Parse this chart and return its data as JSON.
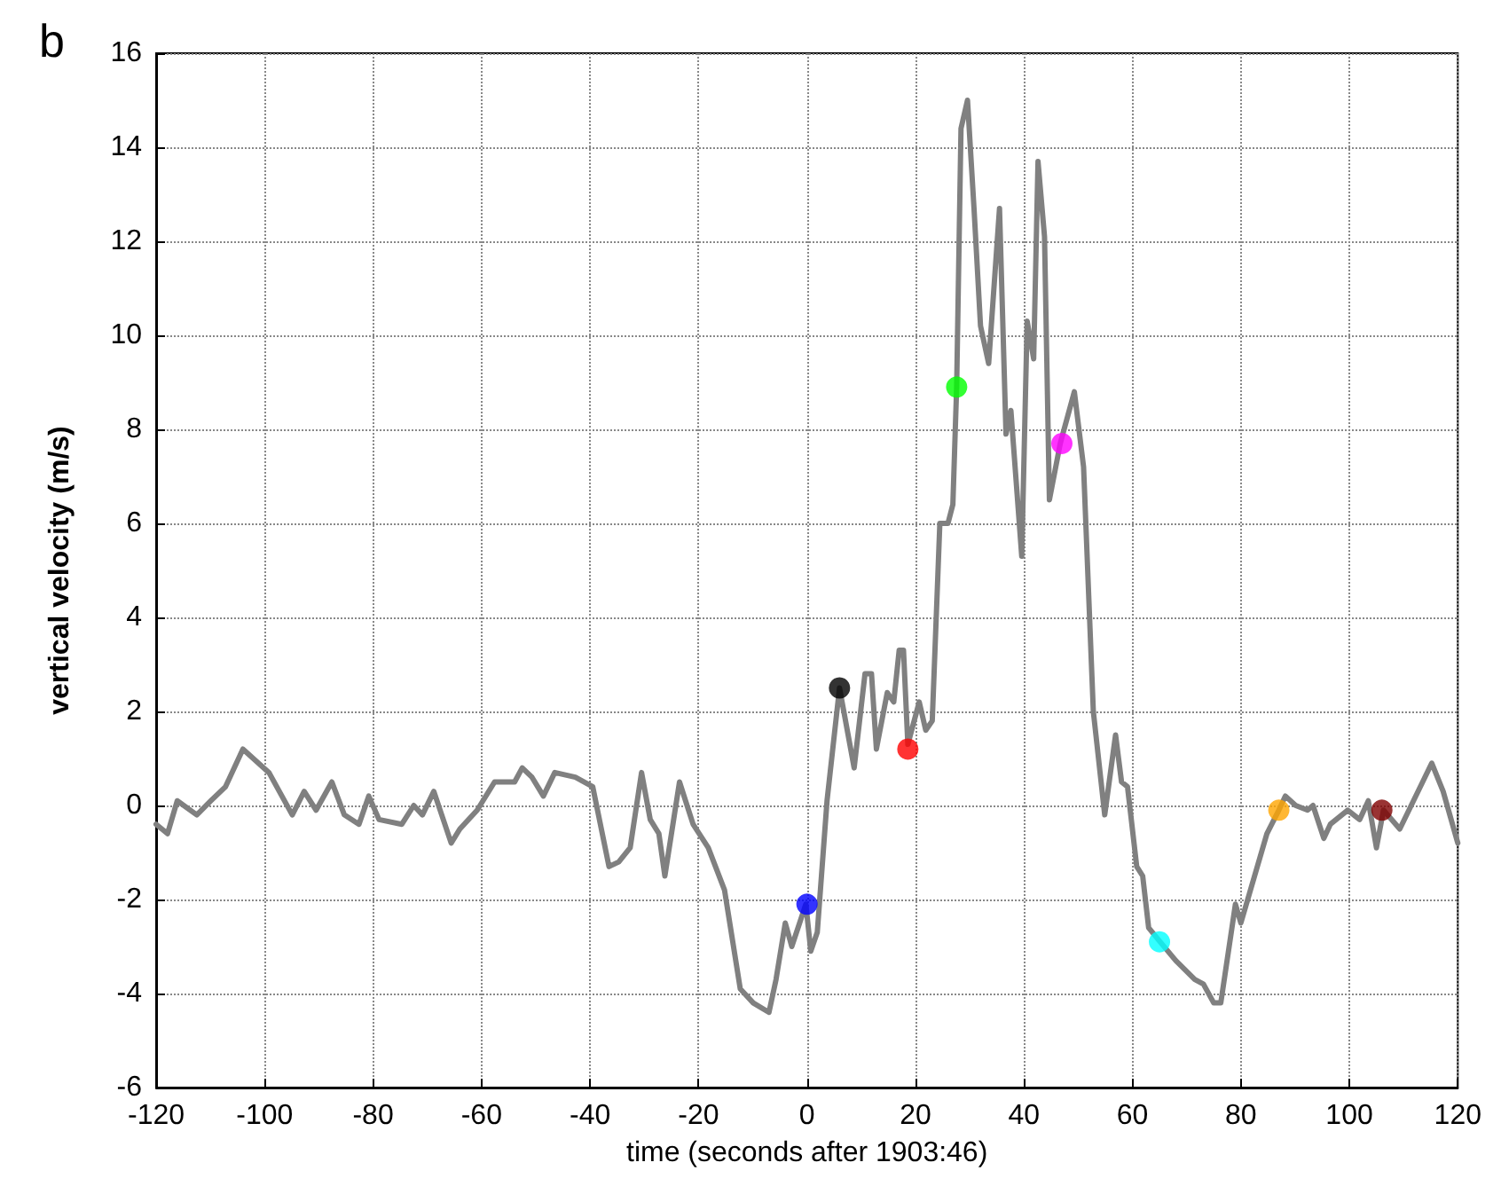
{
  "chart_data": {
    "type": "line",
    "xlabel": "time (seconds after 1903:46)",
    "ylabel": "vertical velocity (m/s)",
    "annotations": [
      "b"
    ],
    "xlim": [
      -120,
      120
    ],
    "ylim": [
      -6,
      16
    ],
    "xticks": [
      -120,
      -100,
      -80,
      -60,
      -40,
      -20,
      0,
      20,
      40,
      60,
      80,
      100,
      120
    ],
    "yticks": [
      -6,
      -4,
      -2,
      0,
      2,
      4,
      6,
      8,
      10,
      12,
      14,
      16
    ],
    "grid": true,
    "line_style": "solid",
    "series": [
      {
        "color": "#808080",
        "x": [
          -120,
          -117.9,
          -116.1,
          -112.5,
          -109.9,
          -107.2,
          -104,
          -99.2,
          -94.9,
          -92.7,
          -90.5,
          -87.6,
          -85.3,
          -82.6,
          -80.8,
          -78.9,
          -74.7,
          -72.5,
          -70.9,
          -68.8,
          -65.6,
          -64,
          -60.8,
          -57.6,
          -53.9,
          -52.5,
          -50.7,
          -48.6,
          -46.5,
          -42.7,
          -39.5,
          -36.5,
          -34.7,
          -32.6,
          -30.5,
          -28.9,
          -27.3,
          -26.2,
          -23.5,
          -21,
          -18.2,
          -15.2,
          -12.3,
          -9.9,
          -7,
          -5.7,
          -4,
          -2.8,
          -0.2,
          0.7,
          1.9,
          3.7,
          6,
          8.7,
          10.7,
          11.9,
          12.8,
          14.8,
          16,
          17,
          17.8,
          18.6,
          20.7,
          21.9,
          23.1,
          24.5,
          26,
          26.9,
          27.6,
          28.4,
          29.6,
          30.8,
          32,
          33.5,
          35.5,
          36.7,
          37.6,
          39.6,
          40.6,
          41.8,
          42.6,
          43.8,
          44.7,
          46.7,
          49.3,
          51,
          52.8,
          54.9,
          56.9,
          58,
          59.1,
          60.8,
          61.9,
          63,
          65.1,
          68,
          71.5,
          73.1,
          75,
          76.3,
          79,
          80,
          84.8,
          87,
          88.2,
          90.1,
          92.3,
          93.3,
          95.3,
          96.5,
          99.7,
          101.9,
          103.5,
          105,
          106.3,
          109.3,
          113.1,
          115.2,
          117.3,
          120
        ],
        "values": [
          -0.4,
          -0.6,
          0.1,
          -0.2,
          0.1,
          0.4,
          1.2,
          0.7,
          -0.2,
          0.3,
          -0.1,
          0.5,
          -0.2,
          -0.4,
          0.2,
          -0.3,
          -0.4,
          0,
          -0.2,
          0.3,
          -0.8,
          -0.5,
          -0.1,
          0.5,
          0.5,
          0.8,
          0.6,
          0.2,
          0.7,
          0.6,
          0.4,
          -1.3,
          -1.2,
          -0.9,
          0.7,
          -0.3,
          -0.6,
          -1.5,
          0.5,
          -0.4,
          -0.9,
          -1.8,
          -3.9,
          -4.2,
          -4.4,
          -3.7,
          -2.5,
          -3,
          -2.1,
          -3.1,
          -2.7,
          0.1,
          2.5,
          0.8,
          2.8,
          2.8,
          1.2,
          2.4,
          2.2,
          3.3,
          3.3,
          1.3,
          2.2,
          1.6,
          1.8,
          6,
          6,
          6.4,
          8.9,
          14.4,
          15,
          12.7,
          10.2,
          9.4,
          12.7,
          7.9,
          8.4,
          5.3,
          10.3,
          9.5,
          13.7,
          12.1,
          6.5,
          7.7,
          8.8,
          7.2,
          2,
          -0.2,
          1.5,
          0.5,
          0.4,
          -1.3,
          -1.5,
          -2.6,
          -2.9,
          -3.3,
          -3.7,
          -3.8,
          -4.2,
          -4.2,
          -2.1,
          -2.5,
          -0.6,
          -0.1,
          0.2,
          0,
          -0.1,
          0,
          -0.7,
          -0.4,
          -0.1,
          -0.3,
          0.1,
          -0.9,
          -0.1,
          -0.5,
          0.4,
          0.9,
          0.3,
          -0.8
        ]
      },
      {
        "type": "scatter",
        "color": "#0000ff",
        "x": [
          0
        ],
        "values": [
          -2.1
        ]
      },
      {
        "type": "scatter",
        "color": "#000000",
        "x": [
          6
        ],
        "values": [
          2.5
        ]
      },
      {
        "type": "scatter",
        "color": "#ff0000",
        "x": [
          18.6
        ],
        "values": [
          1.2
        ]
      },
      {
        "type": "scatter",
        "color": "#00ff00",
        "x": [
          27.6
        ],
        "values": [
          8.9
        ]
      },
      {
        "type": "scatter",
        "color": "#ff00ff",
        "x": [
          47
        ],
        "values": [
          7.7
        ]
      },
      {
        "type": "scatter",
        "color": "#00ffff",
        "x": [
          65
        ],
        "values": [
          -2.9
        ]
      },
      {
        "type": "scatter",
        "color": "#ffa500",
        "x": [
          87
        ],
        "values": [
          -0.1
        ]
      },
      {
        "type": "scatter",
        "color": "#800000",
        "x": [
          106
        ],
        "values": [
          -0.1
        ]
      }
    ]
  }
}
